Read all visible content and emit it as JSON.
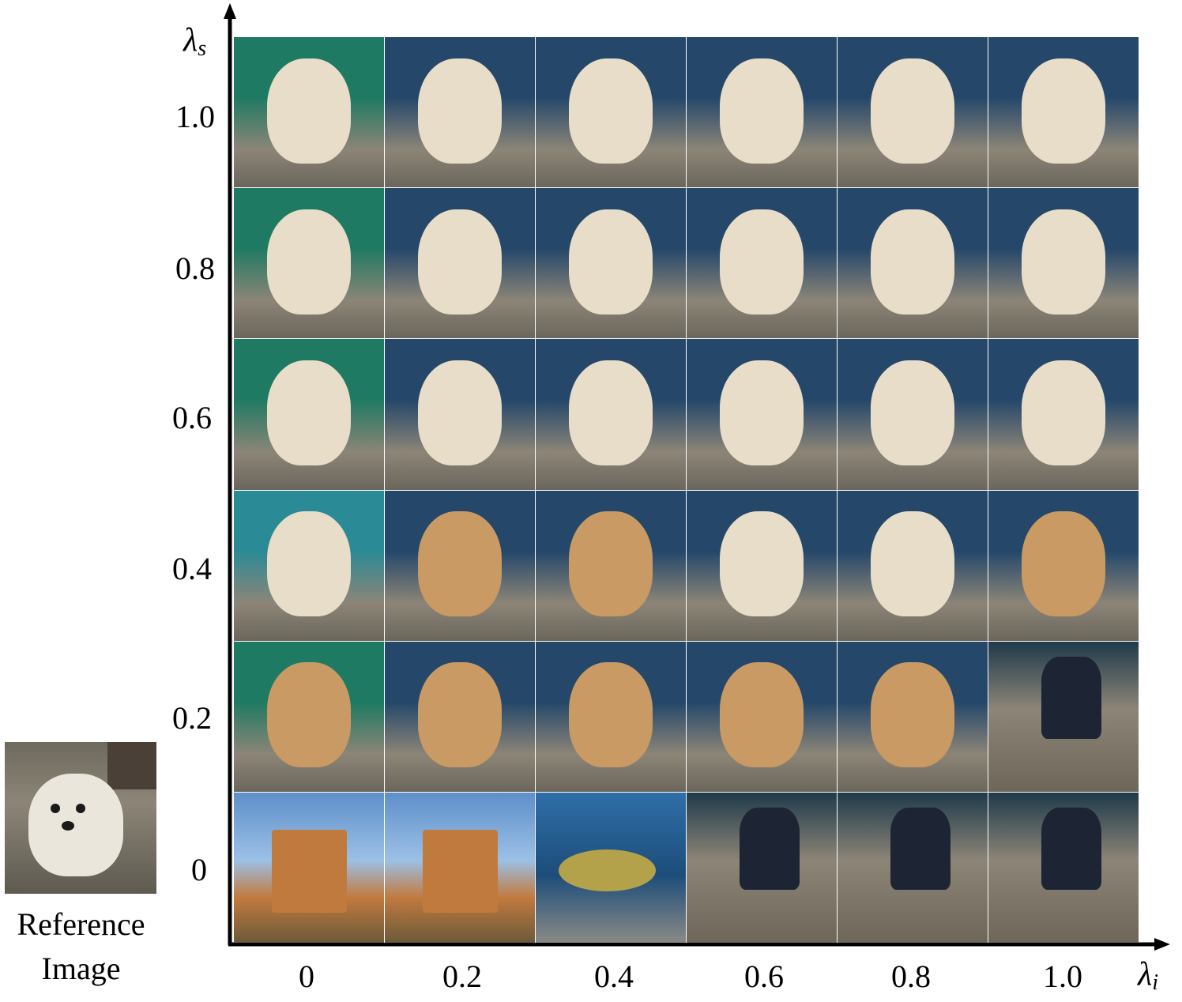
{
  "y_axis": {
    "symbol": "λ",
    "subscript": "s",
    "ticks": [
      "1.0",
      "0.8",
      "0.6",
      "0.4",
      "0.2",
      "0"
    ]
  },
  "x_axis": {
    "symbol": "λ",
    "subscript": "i",
    "ticks": [
      "0",
      "0.2",
      "0.4",
      "0.6",
      "0.8",
      "1.0"
    ]
  },
  "reference": {
    "caption_line1": "Reference",
    "caption_line2": "Image"
  },
  "grid_rows": [
    [
      "dog",
      "dog",
      "dog",
      "dog",
      "dog",
      "dog"
    ],
    [
      "dog",
      "dog",
      "dog",
      "dog",
      "dog",
      "dog"
    ],
    [
      "dog",
      "dog",
      "dog",
      "dog",
      "dog",
      "dog"
    ],
    [
      "dog",
      "dog",
      "dog",
      "dog",
      "dog",
      "dog"
    ],
    [
      "dog",
      "dog",
      "dog",
      "dog",
      "dog",
      "person"
    ],
    [
      "ruin",
      "ruin",
      "fish",
      "person",
      "person",
      "person"
    ]
  ],
  "colors": {
    "axis": "#000000",
    "dog": "#e8ddc8",
    "dog_tan": "#c99a63",
    "water": "#24476a",
    "gravel": "#8c8577",
    "sky": "#5d8fc9",
    "desert": "#c17a3e",
    "teal_wall": "#1e7a62"
  }
}
